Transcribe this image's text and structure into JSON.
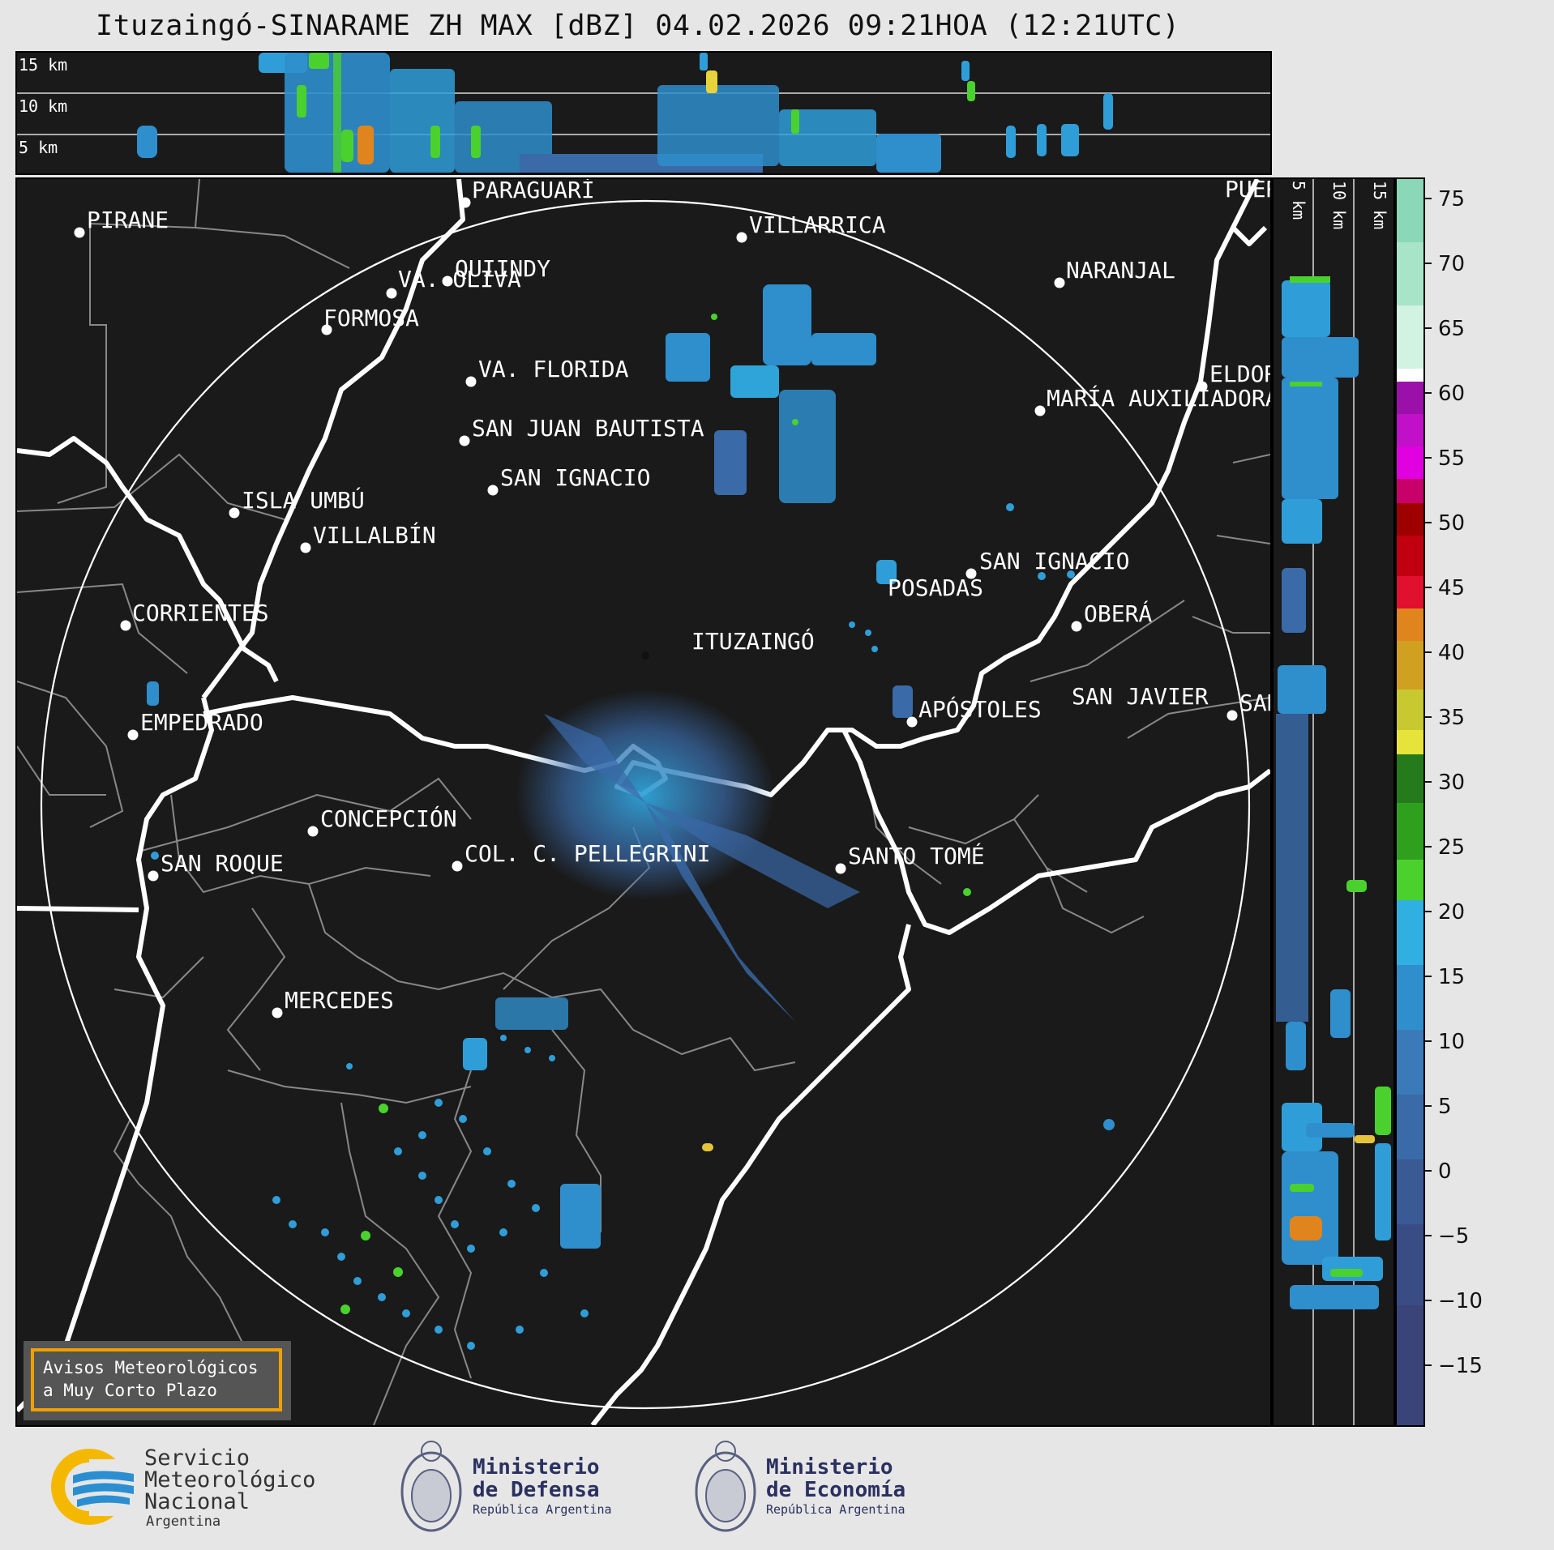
{
  "title": "Ituzaingó-SINARAME ZH MAX [dBZ] 04.02.2026 09:21HOA (12:21UTC)",
  "top_panel_labels": [
    "15 km",
    "10 km",
    "5 km"
  ],
  "side_panel_labels": [
    "5 km",
    "10 km",
    "15 km"
  ],
  "cities": [
    {
      "name": "PIRANE"
    },
    {
      "name": "PARAGUARÍ"
    },
    {
      "name": "VILLARRICA"
    },
    {
      "name": "QUIINDY"
    },
    {
      "name": "VA. OLIVA"
    },
    {
      "name": "FORMOSA"
    },
    {
      "name": "NARANJAL"
    },
    {
      "name": "PUERTO"
    },
    {
      "name": "VA. FLORIDA"
    },
    {
      "name": "ELDORADO"
    },
    {
      "name": "MARÍA AUXILIADORA"
    },
    {
      "name": "SAN JUAN BAUTISTA"
    },
    {
      "name": "SAN IGNACIO"
    },
    {
      "name": "ISLA UMBÚ"
    },
    {
      "name": "VILLALBÍN"
    },
    {
      "name": "SAN IGNACIO"
    },
    {
      "name": "POSADAS"
    },
    {
      "name": "CORRIENTES"
    },
    {
      "name": "ITUZAINGÓ"
    },
    {
      "name": "OBERÁ"
    },
    {
      "name": "EMPEDRADO"
    },
    {
      "name": "APÓSTOLES"
    },
    {
      "name": "SAN JAVIER"
    },
    {
      "name": "SAN VICENTE"
    },
    {
      "name": "CONCEPCIÓN"
    },
    {
      "name": "COL. C. PELLEGRINI"
    },
    {
      "name": "SANTO TOMÉ"
    },
    {
      "name": "SAN ROQUE"
    },
    {
      "name": "MERCEDES"
    }
  ],
  "warning_box": {
    "line1": "Avisos Meteorológicos",
    "line2": "a Muy Corto Plazo"
  },
  "colorbar": {
    "min": -20,
    "max": 77,
    "ticks": [
      "75",
      "70",
      "65",
      "60",
      "55",
      "50",
      "45",
      "40",
      "35",
      "30",
      "25",
      "20",
      "15",
      "10",
      "5",
      "0",
      "−5",
      "−10",
      "−15"
    ],
    "colors": {
      "deep_blue": "#3a4478",
      "blue": "#3a6aa8",
      "light_blue": "#2fa4d8",
      "green": "#4ad12e",
      "dark_green": "#257a1c",
      "yellow": "#e6e43a",
      "orange": "#e0851e",
      "red": "#e0102e",
      "dark_red": "#9e0000",
      "magenta": "#e000e0",
      "purple": "#9a10a8",
      "white": "#ffffff",
      "mint": "#8ad8b8"
    }
  },
  "footer": {
    "smn": {
      "l1": "Servicio",
      "l2": "Meteorológico",
      "l3": "Nacional",
      "l4": "Argentina"
    },
    "defensa": {
      "l1": "Ministerio",
      "l2": "de Defensa",
      "l3": "República Argentina"
    },
    "economia": {
      "l1": "Ministerio",
      "l2": "de Economía",
      "l3": "República Argentina"
    }
  }
}
